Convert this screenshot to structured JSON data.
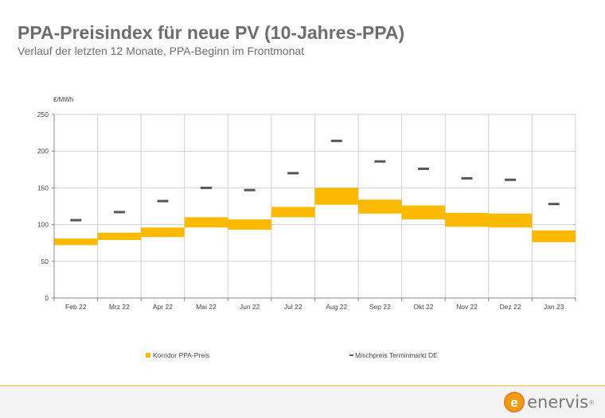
{
  "header": {
    "title": "PPA-Preisindex für neue PV (10-Jahres-PPA)",
    "subtitle": "Verlauf der letzten 12 Monate, PPA-Beginn im Frontmonat"
  },
  "brand": {
    "logo_letter": "e",
    "logo_name": "enervis",
    "logo_reg": "®",
    "logo_icon": "enervis-logo-icon",
    "accent_color": "#f0b34a"
  },
  "chart_data": {
    "type": "bar",
    "unit_label": "€/MWh",
    "title": "",
    "xlabel": "",
    "ylabel": "€/MWh",
    "ylim": [
      0,
      250
    ],
    "yticks": [
      0,
      50,
      100,
      150,
      200,
      250
    ],
    "grid": true,
    "legend_position": "bottom",
    "categories": [
      "Feb 22",
      "Mrz 22",
      "Apr 22",
      "Mai 22",
      "Jun 22",
      "Jul 22",
      "Aug 22",
      "Sep 22",
      "Okt 22",
      "Nov 22",
      "Dez 22",
      "Jan 23"
    ],
    "series": [
      {
        "name": "Korridor PPA-Preis",
        "kind": "floating-bar",
        "color": "#fbb900",
        "low": [
          72,
          79,
          83,
          96,
          93,
          110,
          127,
          115,
          107,
          97,
          96,
          76
        ],
        "high": [
          81,
          89,
          96,
          110,
          107,
          124,
          150,
          134,
          126,
          116,
          115,
          92
        ]
      },
      {
        "name": "Mischpreis Terminmarkt DE",
        "kind": "marker",
        "color": "#555555",
        "values": [
          106,
          117,
          132,
          150,
          147,
          170,
          214,
          186,
          176,
          163,
          161,
          128
        ]
      }
    ]
  }
}
